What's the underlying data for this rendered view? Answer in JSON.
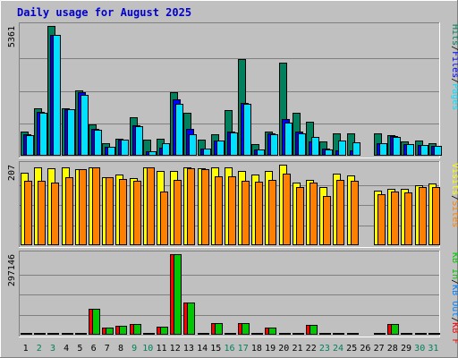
{
  "chart_data": {
    "type": "bar",
    "title": "Daily usage for August 2025",
    "days": [
      "1",
      "2",
      "3",
      "4",
      "5",
      "6",
      "7",
      "8",
      "9",
      "10",
      "11",
      "12",
      "13",
      "14",
      "15",
      "16",
      "17",
      "18",
      "19",
      "20",
      "21",
      "22",
      "23",
      "24",
      "25",
      "26",
      "27",
      "28",
      "29",
      "30",
      "31"
    ],
    "weekend_days": [
      "2",
      "3",
      "9",
      "10",
      "16",
      "17",
      "23",
      "24",
      "30",
      "31"
    ],
    "colors": {
      "background": "#C0C0C0",
      "border_light": "#FFFFFF",
      "border_dark": "#808080",
      "title": "#0000CC",
      "hits": "#00805C",
      "files": "#0000FF",
      "pages": "#00E0FF",
      "visits": "#FFFF00",
      "sites": "#FF8000",
      "kb_in": "#00C800",
      "kb_out": "#0080FF",
      "kb_f": "#FF0000",
      "weekend_label": "#00805C",
      "weekday_label": "#000000"
    },
    "panels": [
      {
        "name": "hits-files-pages",
        "max_label": "5361",
        "legend": [
          {
            "text": "Pages",
            "color_key": "pages"
          },
          {
            "text": "Files",
            "color_key": "files"
          },
          {
            "text": "Hits",
            "color_key": "hits"
          }
        ],
        "ymax": 5361,
        "series": [
          {
            "name": "Hits",
            "color_key": "hits",
            "values": [
              1000,
              1970,
              5361,
              1960,
              2710,
              1310,
              520,
              720,
              1580,
              650,
              700,
              2610,
              1770,
              650,
              870,
              1880,
              3990,
              470,
              1010,
              3830,
              1760,
              1410,
              610,
              910,
              930,
              0,
              910,
              840,
              610,
              620,
              500
            ]
          },
          {
            "name": "Files",
            "color_key": "files",
            "values": [
              880,
              1830,
              5000,
              1920,
              2640,
              1100,
              370,
              680,
              1240,
              200,
              340,
              2330,
              1100,
              290,
              630,
              1010,
              2170,
              270,
              930,
              1530,
              1000,
              590,
              280,
              240,
              240,
              0,
              520,
              800,
              480,
              450,
              400
            ]
          },
          {
            "name": "Pages",
            "color_key": "pages",
            "values": [
              850,
              1790,
              5000,
              1910,
              2530,
              1070,
              370,
              650,
              1210,
              200,
              530,
              2130,
              900,
              290,
              620,
              960,
              2150,
              270,
              900,
              1360,
              940,
              780,
              260,
              640,
              570,
              0,
              510,
              790,
              480,
              450,
              400
            ]
          }
        ]
      },
      {
        "name": "visits-sites",
        "max_label": "207",
        "legend": [
          {
            "text": "Sites",
            "color_key": "sites"
          },
          {
            "text": "Visits",
            "color_key": "visits"
          }
        ],
        "ymax": 207,
        "series": [
          {
            "name": "Visits",
            "color_key": "visits",
            "values": [
              187,
              200,
              198,
              200,
              196,
              199,
              175,
              182,
              173,
              200,
              190,
              191,
              200,
              197,
              200,
              200,
              190,
              181,
              190,
              207,
              160,
              168,
              150,
              183,
              180,
              0,
              140,
              145,
              145,
              155,
              158
            ]
          },
          {
            "name": "Sites",
            "color_key": "sites",
            "values": [
              165,
              166,
              160,
              175,
              196,
              200,
              175,
              170,
              165,
              200,
              137,
              168,
              198,
              195,
              178,
              177,
              165,
              163,
              168,
              185,
              150,
              160,
              126,
              168,
              165,
              0,
              132,
              139,
              136,
              150,
              150
            ]
          }
        ]
      },
      {
        "name": "kbytes",
        "max_label": "297146",
        "legend": [
          {
            "text": "KB F",
            "color_key": "kb_f"
          },
          {
            "text": "KB Out",
            "color_key": "kb_out"
          },
          {
            "text": "KB In",
            "color_key": "kb_in"
          }
        ],
        "ymax": 297146,
        "series": [
          {
            "name": "KB F",
            "color_key": "kb_f",
            "values": [
              3000,
              3000,
              5000,
              3000,
              3000,
              95000,
              28000,
              33000,
              38000,
              3000,
              30000,
              297146,
              120000,
              3000,
              42000,
              3000,
              42000,
              3000,
              25000,
              6000,
              3000,
              35000,
              3000,
              3000,
              3000,
              0,
              3000,
              40000,
              3000,
              3000,
              3000
            ]
          },
          {
            "name": "KB In",
            "color_key": "kb_in",
            "values": [
              3000,
              3000,
              5000,
              3000,
              3000,
              95000,
              28000,
              33000,
              38000,
              3000,
              30000,
              297146,
              120000,
              3000,
              42000,
              3000,
              42000,
              3000,
              25000,
              6000,
              3000,
              35000,
              3000,
              3000,
              3000,
              0,
              3000,
              40000,
              3000,
              3000,
              3000
            ]
          }
        ]
      }
    ]
  }
}
